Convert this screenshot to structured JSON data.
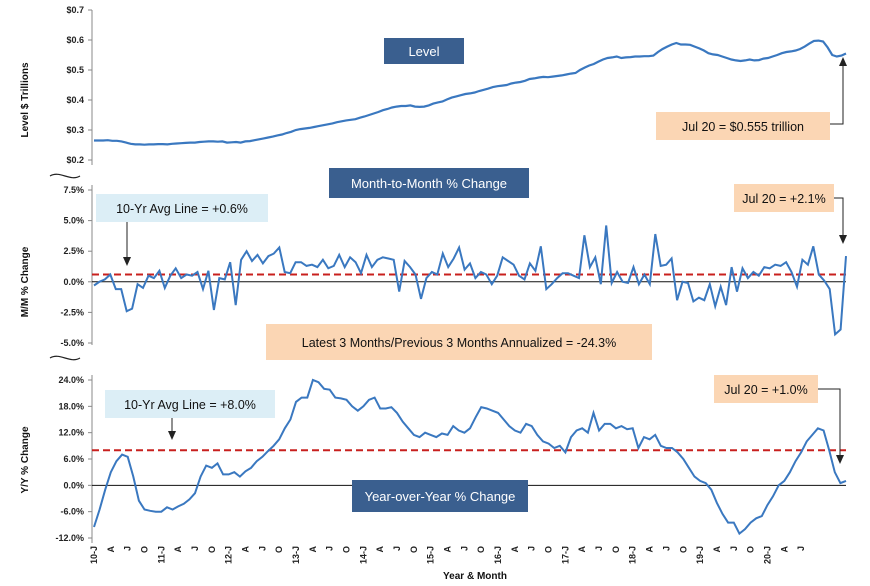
{
  "chart_data": [
    {
      "type": "line",
      "panel": "level",
      "ylabel": "Level $ Trillions",
      "title_box": "Level",
      "ylim": [
        0.2,
        0.7
      ],
      "yticks": [
        0.2,
        0.3,
        0.4,
        0.5,
        0.6,
        0.7
      ],
      "ytick_labels": [
        "$0.2",
        "$0.3",
        "$0.4",
        "$0.5",
        "$0.6",
        "$0.7"
      ],
      "annotations": [
        {
          "text": "Jul 20 = $0.555 trillion"
        }
      ],
      "series_color": "#3a78c0",
      "series": [
        {
          "x_start": "2010-01",
          "x_end": "2020-07",
          "values": [
            0.265,
            0.265,
            0.265,
            0.266,
            0.264,
            0.264,
            0.262,
            0.258,
            0.254,
            0.252,
            0.252,
            0.251,
            0.252,
            0.252,
            0.253,
            0.253,
            0.252,
            0.254,
            0.255,
            0.256,
            0.257,
            0.258,
            0.258,
            0.26,
            0.261,
            0.262,
            0.262,
            0.261,
            0.262,
            0.258,
            0.259,
            0.26,
            0.258,
            0.262,
            0.263,
            0.266,
            0.269,
            0.272,
            0.275,
            0.278,
            0.282,
            0.285,
            0.29,
            0.294,
            0.3,
            0.303,
            0.305,
            0.307,
            0.31,
            0.313,
            0.316,
            0.319,
            0.322,
            0.326,
            0.329,
            0.332,
            0.334,
            0.336,
            0.341,
            0.345,
            0.35,
            0.355,
            0.36,
            0.366,
            0.37,
            0.375,
            0.378,
            0.38,
            0.38,
            0.382,
            0.378,
            0.377,
            0.378,
            0.382,
            0.388,
            0.392,
            0.395,
            0.402,
            0.408,
            0.412,
            0.416,
            0.42,
            0.422,
            0.425,
            0.43,
            0.434,
            0.438,
            0.443,
            0.446,
            0.448,
            0.45,
            0.455,
            0.458,
            0.46,
            0.464,
            0.47,
            0.472,
            0.475,
            0.477,
            0.476,
            0.478,
            0.48,
            0.482,
            0.485,
            0.488,
            0.49,
            0.5,
            0.508,
            0.515,
            0.52,
            0.528,
            0.535,
            0.54,
            0.542,
            0.545,
            0.54,
            0.542,
            0.543,
            0.545,
            0.545,
            0.546,
            0.546,
            0.548,
            0.56,
            0.57,
            0.578,
            0.585,
            0.59,
            0.585,
            0.585,
            0.584,
            0.578,
            0.572,
            0.565,
            0.556,
            0.552,
            0.55,
            0.545,
            0.54,
            0.535,
            0.532,
            0.53,
            0.532,
            0.535,
            0.532,
            0.533,
            0.538,
            0.54,
            0.545,
            0.55,
            0.556,
            0.56,
            0.562,
            0.565,
            0.57,
            0.578,
            0.588,
            0.597,
            0.598,
            0.595,
            0.575,
            0.55,
            0.545,
            0.548,
            0.555
          ]
        }
      ]
    },
    {
      "type": "line",
      "panel": "month-to-month",
      "ylabel": "M/M % Change",
      "title_box": "Month-to-Month % Change",
      "ylim": [
        -5.0,
        7.5
      ],
      "yticks": [
        -5.0,
        -2.5,
        0.0,
        2.5,
        5.0,
        7.5
      ],
      "ytick_labels": [
        "-5.0%",
        "-2.5%",
        "0.0%",
        "2.5%",
        "5.0%",
        "7.5%"
      ],
      "reference_line": {
        "value": 0.6,
        "color": "#c8201e"
      },
      "annotations": [
        {
          "text": "10-Yr Avg Line = +0.6%"
        },
        {
          "text": "Jul 20 = +2.1%"
        },
        {
          "text": "Latest 3 Months/Previous 3 Months Annualized = -24.3%"
        }
      ],
      "series_color": "#3a78c0",
      "series": [
        {
          "x_start": "2010-01",
          "x_end": "2020-07",
          "values": [
            -0.3,
            0.0,
            0.2,
            0.6,
            -0.6,
            -0.6,
            -2.4,
            -2.2,
            -0.2,
            -0.5,
            0.5,
            0.3,
            0.9,
            -0.5,
            0.5,
            1.1,
            0.3,
            0.6,
            0.5,
            0.8,
            -0.6,
            0.9,
            -2.3,
            0.3,
            0.2,
            1.6,
            -1.9,
            1.8,
            2.5,
            1.7,
            2.2,
            1.5,
            2.1,
            2.3,
            2.8,
            0.8,
            0.7,
            1.6,
            1.6,
            1.3,
            1.4,
            1.2,
            1.8,
            1.1,
            1.3,
            2.2,
            1.2,
            2.0,
            1.6,
            0.7,
            2.2,
            1.2,
            1.8,
            2.0,
            1.9,
            1.8,
            -0.8,
            1.7,
            1.2,
            0.6,
            -1.4,
            0.3,
            0.8,
            0.6,
            2.3,
            1.2,
            1.9,
            2.8,
            1.0,
            1.5,
            0.3,
            0.8,
            0.6,
            -0.2,
            0.5,
            2.0,
            1.7,
            1.4,
            0.5,
            0.2,
            1.5,
            0.9,
            2.9,
            -0.6,
            -0.2,
            0.3,
            0.7,
            0.7,
            0.5,
            0.3,
            3.8,
            1.2,
            2.0,
            -0.2,
            4.6,
            -0.1,
            0.8,
            0.0,
            -0.1,
            1.2,
            -0.2,
            0.6,
            -0.2,
            3.9,
            1.3,
            1.4,
            1.9,
            -1.5,
            0.0,
            -0.1,
            -1.6,
            -1.3,
            -1.5,
            -0.2,
            -2.0,
            -0.4,
            -1.9,
            1.2,
            -0.8,
            1.1,
            0.3,
            0.8,
            0.5,
            1.2,
            1.1,
            1.4,
            1.3,
            1.6,
            0.8,
            -0.4,
            1.8,
            1.4,
            2.9,
            0.6,
            0.1,
            -0.6,
            -4.3,
            -3.9,
            2.1
          ]
        }
      ]
    },
    {
      "type": "line",
      "panel": "year-over-year",
      "ylabel": "Y/Y % Change",
      "title_box": "Year-over-Year % Change",
      "ylim": [
        -12.0,
        24.0
      ],
      "yticks": [
        -12.0,
        -6.0,
        0.0,
        6.0,
        12.0,
        18.0,
        24.0
      ],
      "ytick_labels": [
        "-12.0%",
        "-6.0%",
        "0.0%",
        "6.0%",
        "12.0%",
        "18.0%",
        "24.0%"
      ],
      "reference_line": {
        "value": 8.0,
        "color": "#c8201e"
      },
      "annotations": [
        {
          "text": "10-Yr Avg Line = +8.0%"
        },
        {
          "text": "Jul 20 = +1.0%"
        }
      ],
      "xlabel": "Year & Month",
      "x_tick_labels": [
        "10-J",
        "A",
        "J",
        "O",
        "11-J",
        "A",
        "J",
        "O",
        "12-J",
        "A",
        "J",
        "O",
        "13-J",
        "A",
        "J",
        "O",
        "14-J",
        "A",
        "J",
        "O",
        "15-J",
        "A",
        "J",
        "O",
        "16-J",
        "A",
        "J",
        "O",
        "17-J",
        "A",
        "J",
        "O",
        "18-J",
        "A",
        "J",
        "O",
        "19-J",
        "A",
        "J",
        "O",
        "20-J",
        "A",
        "J"
      ],
      "series_color": "#3a78c0",
      "series": [
        {
          "x_start": "2010-01",
          "x_end": "2020-07",
          "values": [
            -9.5,
            -5.5,
            -1.0,
            3.0,
            5.5,
            7.0,
            6.5,
            2.0,
            -3.5,
            -5.5,
            -5.8,
            -6.0,
            -6.0,
            -5.0,
            -5.5,
            -4.8,
            -4.2,
            -3.2,
            -1.8,
            2.0,
            4.5,
            4.0,
            5.0,
            2.5,
            2.5,
            3.0,
            2.0,
            3.2,
            4.0,
            5.5,
            6.5,
            7.8,
            9.0,
            10.5,
            13.0,
            15.0,
            19.0,
            20.0,
            20.0,
            24.0,
            23.5,
            22.0,
            21.8,
            20.0,
            19.8,
            19.5,
            18.0,
            17.0,
            18.0,
            19.5,
            20.0,
            17.5,
            17.5,
            17.8,
            16.5,
            14.5,
            13.0,
            11.5,
            11.0,
            12.0,
            11.5,
            11.0,
            11.8,
            11.5,
            13.5,
            12.5,
            12.0,
            13.0,
            15.5,
            17.8,
            17.5,
            17.0,
            16.5,
            15.0,
            13.5,
            12.5,
            12.0,
            14.0,
            13.5,
            11.5,
            10.0,
            9.5,
            8.5,
            9.0,
            7.5,
            11.0,
            12.5,
            13.0,
            12.0,
            16.5,
            12.5,
            14.0,
            14.0,
            13.0,
            13.5,
            12.8,
            13.0,
            8.5,
            11.0,
            10.5,
            11.5,
            9.0,
            8.5,
            8.5,
            7.5,
            6.0,
            4.0,
            2.0,
            1.0,
            0.5,
            -1.0,
            -4.0,
            -6.5,
            -8.5,
            -8.5,
            -11.0,
            -10.0,
            -8.5,
            -7.5,
            -7.0,
            -4.5,
            -2.5,
            0.0,
            1.0,
            3.0,
            5.5,
            7.5,
            10.0,
            11.5,
            13.0,
            12.5,
            8.0,
            3.0,
            0.5,
            1.0
          ]
        }
      ]
    }
  ]
}
